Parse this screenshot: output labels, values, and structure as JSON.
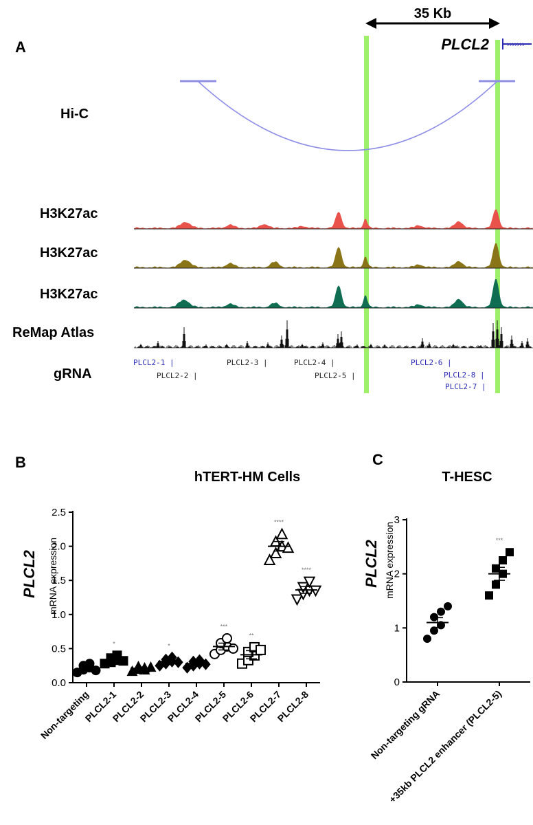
{
  "panel_a": {
    "label": "A",
    "scale_label": "35 Kb",
    "gene_label": "PLCL2",
    "tracks": {
      "hic": "Hi-C",
      "h3k27ac_1": "H3K27ac",
      "h3k27ac_2": "H3K27ac",
      "h3k27ac_3": "H3K27ac",
      "remap": "ReMap Atlas",
      "grna": "gRNA"
    },
    "grna_labels": [
      "PLCL2-1 |",
      "PLCL2-2 |",
      "PLCL2-3 |",
      "PLCL2-4 |",
      "PLCL2-5 |",
      "PLCL2-6 |",
      "PLCL2-8 |",
      "PLCL2-7 |"
    ],
    "colors": {
      "highlight": "#9ef06a",
      "hic_arc": "#8f8fe8",
      "h3k27ac_1": "#e8524a",
      "h3k27ac_2": "#8a7418",
      "h3k27ac_3": "#0f6e52",
      "remap": "#111111",
      "grna_blue": "#2a2ab4",
      "grna_black": "#222222"
    }
  },
  "chart_data": [
    {
      "type": "scatter",
      "panel": "B",
      "title": "hTERT-HM Cells",
      "ylabel": "PLCL2",
      "ylabel_sub": "mRNA expression",
      "ylim": [
        0,
        2.5
      ],
      "yticks": [
        "0.0",
        "0.5",
        "1.0",
        "1.5",
        "2.0",
        "2.5"
      ],
      "categories": [
        "Non-targeting",
        "PLCL2-1",
        "PLCL2-2",
        "PLCL2-3",
        "PLCL2-4",
        "PLCL2-5",
        "PLCL2-6",
        "PLCL2-7",
        "PLCL2-8"
      ],
      "markers": [
        "circle",
        "square",
        "triangle",
        "diamond",
        "diamond",
        "circle-open",
        "square-open",
        "triangle-open",
        "triangle-down-open"
      ],
      "means": [
        0.2,
        0.33,
        0.21,
        0.31,
        0.28,
        0.53,
        0.41,
        2.0,
        1.36
      ],
      "sem": [
        0.03,
        0.03,
        0.02,
        0.03,
        0.02,
        0.05,
        0.06,
        0.07,
        0.05
      ],
      "significance": [
        "",
        "*",
        "",
        "*",
        "",
        "***",
        "**",
        "****",
        "****"
      ],
      "points": [
        [
          0.15,
          0.19,
          0.22,
          0.25,
          0.28,
          0.18
        ],
        [
          0.28,
          0.3,
          0.33,
          0.36,
          0.4,
          0.32
        ],
        [
          0.17,
          0.2,
          0.22,
          0.24,
          0.19,
          0.23
        ],
        [
          0.25,
          0.28,
          0.31,
          0.34,
          0.37,
          0.3
        ],
        [
          0.22,
          0.25,
          0.28,
          0.31,
          0.33,
          0.27
        ],
        [
          0.42,
          0.48,
          0.53,
          0.58,
          0.65,
          0.5
        ],
        [
          0.28,
          0.33,
          0.4,
          0.45,
          0.52,
          0.48
        ],
        [
          1.8,
          1.9,
          2.0,
          2.07,
          2.18,
          1.98
        ],
        [
          1.22,
          1.3,
          1.35,
          1.4,
          1.48,
          1.35
        ]
      ]
    },
    {
      "type": "scatter",
      "panel": "C",
      "title": "T-HESC",
      "ylabel": "PLCL2",
      "ylabel_sub": "mRNA expression",
      "ylim": [
        0,
        3
      ],
      "yticks": [
        "0",
        "1",
        "2",
        "3"
      ],
      "categories": [
        "Non-targeting gRNA",
        "+35kb PLCL2 enhancer (PLCL2-5)"
      ],
      "markers": [
        "circle",
        "square"
      ],
      "means": [
        1.1,
        2.0
      ],
      "sem": [
        0.09,
        0.12
      ],
      "significance": [
        "",
        "***"
      ],
      "points": [
        [
          0.8,
          0.95,
          1.05,
          1.2,
          1.3,
          1.4
        ],
        [
          1.6,
          1.8,
          2.0,
          2.1,
          2.25,
          2.4
        ]
      ]
    }
  ],
  "panel_labels": {
    "b": "B",
    "c": "C"
  }
}
